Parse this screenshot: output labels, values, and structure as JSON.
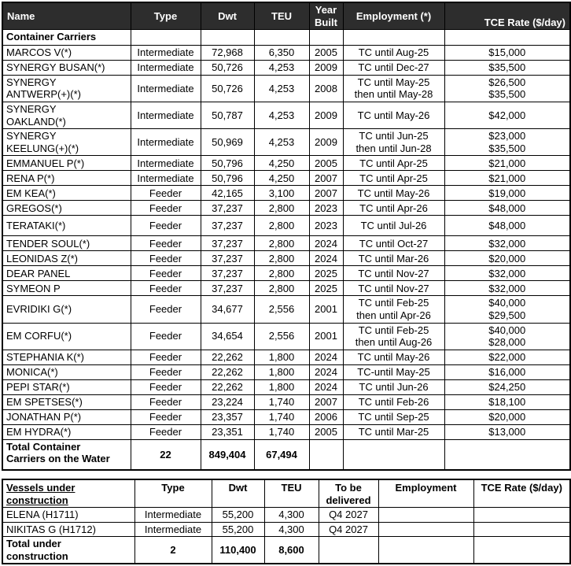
{
  "colors": {
    "header_bg": "#2d2d2d",
    "header_fg": "#ffffff",
    "grid": "#000000",
    "page_bg": "#ffffff"
  },
  "fleet_table": {
    "columns": [
      "Name",
      "Type",
      "Dwt",
      "TEU",
      "Year\nBuilt",
      "Employment (*)",
      "TCE Rate ($/day)"
    ],
    "section_label": "Container Carriers",
    "vessels": [
      {
        "name": "MARCOS V(*)",
        "type": "Intermediate",
        "dwt": "72,968",
        "teu": "6,350",
        "year": "2005",
        "employment": "TC until Aug-25",
        "tce": "$15,000"
      },
      {
        "name": "SYNERGY BUSAN(*)",
        "type": "Intermediate",
        "dwt": "50,726",
        "teu": "4,253",
        "year": "2009",
        "employment": "TC until Dec-27",
        "tce": "$35,500"
      },
      {
        "name": "SYNERGY\nANTWERP(+)(*)",
        "type": "Intermediate",
        "dwt": "50,726",
        "teu": "4,253",
        "year": "2008",
        "employment": "TC until May-25\nthen until May-28",
        "tce": "$26,500\n$35,500"
      },
      {
        "name": "SYNERGY\nOAKLAND(*)",
        "type": "Intermediate",
        "dwt": "50,787",
        "teu": "4,253",
        "year": "2009",
        "employment": "TC until May-26",
        "tce": "$42,000"
      },
      {
        "name": "SYNERGY\nKEELUNG(+)(*)",
        "type": "Intermediate",
        "dwt": "50,969",
        "teu": "4,253",
        "year": "2009",
        "employment": "TC until Jun-25\nthen until Jun-28",
        "tce": "$23,000\n$35,500"
      },
      {
        "name": "EMMANUEL P(*)",
        "type": "Intermediate",
        "dwt": "50,796",
        "teu": "4,250",
        "year": "2005",
        "employment": "TC until Apr-25",
        "tce": "$21,000"
      },
      {
        "name": "RENA P(*)",
        "type": "Intermediate",
        "dwt": "50,796",
        "teu": "4,250",
        "year": "2007",
        "employment": "TC until Apr-25",
        "tce": "$21,000"
      },
      {
        "name": "EM KEA(*)",
        "type": "Feeder",
        "dwt": "42,165",
        "teu": "3,100",
        "year": "2007",
        "employment": "TC until May-26",
        "tce": "$19,000"
      },
      {
        "name": "GREGOS(*)",
        "type": "Feeder",
        "dwt": "37,237",
        "teu": "2,800",
        "year": "2023",
        "employment": "TC until Apr-26",
        "tce": "$48,000"
      },
      {
        "name": "TERATAKI(*)",
        "type": "Feeder",
        "dwt": "37,237",
        "teu": "2,800",
        "year": "2023",
        "employment": "TC until Jul-26",
        "tce": "$48,000"
      },
      {
        "name": "TENDER SOUL(*)",
        "type": "Feeder",
        "dwt": "37,237",
        "teu": "2,800",
        "year": "2024",
        "employment": "TC until Oct-27",
        "tce": "$32,000"
      },
      {
        "name": "LEONIDAS Z(*)",
        "type": "Feeder",
        "dwt": "37,237",
        "teu": "2,800",
        "year": "2024",
        "employment": "TC until Mar-26",
        "tce": "$20,000"
      },
      {
        "name": "DEAR PANEL",
        "type": "Feeder",
        "dwt": "37,237",
        "teu": "2,800",
        "year": "2025",
        "employment": "TC until Nov-27",
        "tce": "$32,000"
      },
      {
        "name": "SYMEON P",
        "type": "Feeder",
        "dwt": "37,237",
        "teu": "2,800",
        "year": "2025",
        "employment": "TC until Nov-27",
        "tce": "$32,000"
      },
      {
        "name": "EVRIDIKI G(*)",
        "type": "Feeder",
        "dwt": "34,677",
        "teu": "2,556",
        "year": "2001",
        "employment": "TC until Feb-25\nthen until Apr-26",
        "tce": "$40,000\n$29,500"
      },
      {
        "name": "EM CORFU(*)",
        "type": "Feeder",
        "dwt": "34,654",
        "teu": "2,556",
        "year": "2001",
        "employment": "TC until Feb-25\nthen until Aug-26",
        "tce": "$40,000\n$28,000"
      },
      {
        "name": "STEPHANIA K(*)",
        "type": "Feeder",
        "dwt": "22,262",
        "teu": "1,800",
        "year": "2024",
        "employment": "TC until May-26",
        "tce": "$22,000"
      },
      {
        "name": "MONICA(*)",
        "type": "Feeder",
        "dwt": "22,262",
        "teu": "1,800",
        "year": "2024",
        "employment": "TC-until May-25",
        "tce": "$16,000"
      },
      {
        "name": "PEPI STAR(*)",
        "type": "Feeder",
        "dwt": "22,262",
        "teu": "1,800",
        "year": "2024",
        "employment": "TC until Jun-26",
        "tce": "$24,250"
      },
      {
        "name": "EM SPETSES(*)",
        "type": "Feeder",
        "dwt": "23,224",
        "teu": "1,740",
        "year": "2007",
        "employment": "TC until Feb-26",
        "tce": "$18,100"
      },
      {
        "name": "JONATHAN P(*)",
        "type": "Feeder",
        "dwt": "23,357",
        "teu": "1,740",
        "year": "2006",
        "employment": "TC until Sep-25",
        "tce": "$20,000"
      },
      {
        "name": "EM HYDRA(*)",
        "type": "Feeder",
        "dwt": "23,351",
        "teu": "1,740",
        "year": "2005",
        "employment": "TC until Mar-25",
        "tce": "$13,000"
      }
    ],
    "total": {
      "label": "Total Container\nCarriers on the Water",
      "type": "22",
      "dwt": "849,404",
      "teu": "67,494"
    }
  },
  "construction_table": {
    "columns": [
      "Vessels under\nconstruction",
      "Type",
      "Dwt",
      "TEU",
      "To be\ndelivered",
      "Employment",
      "TCE Rate ($/day)"
    ],
    "vessels": [
      {
        "name": "ELENA (H1711)",
        "type": "Intermediate",
        "dwt": "55,200",
        "teu": "4,300",
        "delivery": "Q4 2027",
        "employment": "",
        "tce": ""
      },
      {
        "name": "NIKITAS G (H1712)",
        "type": "Intermediate",
        "dwt": "55,200",
        "teu": "4,300",
        "delivery": "Q4 2027",
        "employment": "",
        "tce": ""
      }
    ],
    "total": {
      "label": "Total under\nconstruction",
      "type": "2",
      "dwt": "110,400",
      "teu": "8,600"
    }
  }
}
